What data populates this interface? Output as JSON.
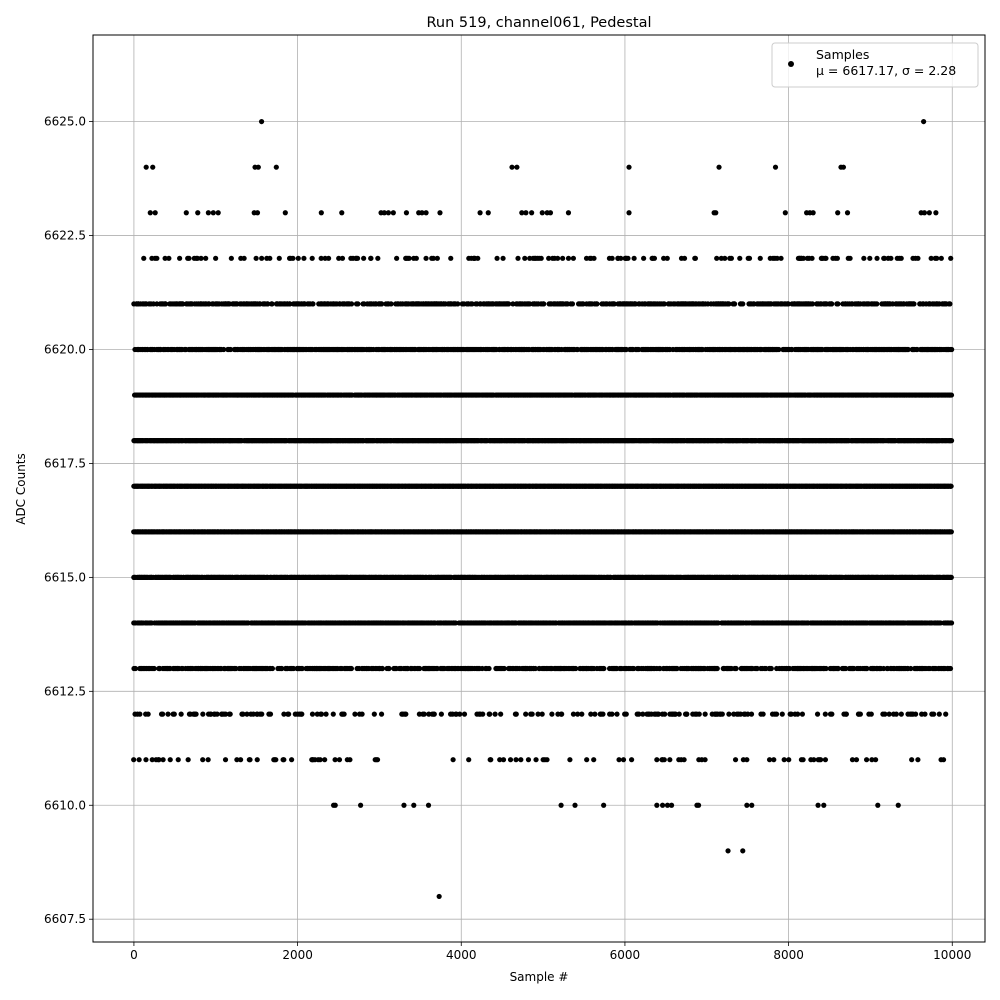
{
  "chart_data": {
    "type": "scatter",
    "title": "Run 519, channel061, Pedestal",
    "xlabel": "Sample #",
    "ylabel": "ADC Counts",
    "xlim": [
      -500,
      10400
    ],
    "ylim": [
      6607.0,
      6626.9
    ],
    "xticks": [
      0,
      2000,
      4000,
      6000,
      8000,
      10000
    ],
    "xtick_labels": [
      "0",
      "2000",
      "4000",
      "6000",
      "8000",
      "10000"
    ],
    "yticks": [
      6607.5,
      6610.0,
      6612.5,
      6615.0,
      6617.5,
      6620.0,
      6622.5,
      6625.0
    ],
    "ytick_labels": [
      "6607.5",
      "6610.0",
      "6612.5",
      "6615.0",
      "6617.5",
      "6620.0",
      "6622.5",
      "6625.0"
    ],
    "grid": true,
    "legend_position": "top-right",
    "legend": {
      "label": "Samples",
      "stats": "μ = 6617.17, σ = 2.28"
    },
    "marker_color": "#000000",
    "series": [
      {
        "name": "Samples",
        "n_samples": 10000,
        "mean": 6617.17,
        "sigma": 2.28,
        "levels": [
          {
            "y": 6625,
            "x": [
              1560,
              9650
            ]
          },
          {
            "y": 6624,
            "x": [
              150,
              230,
              1480,
              1520,
              1740,
              4620,
              4680,
              6050,
              7150,
              7840,
              8640,
              8670
            ]
          },
          {
            "y": 6623,
            "x": [
              200,
              260,
              640,
              780,
              910,
              970,
              1030,
              1470,
              1510,
              1850,
              2290,
              2540,
              3020,
              3060,
              3110,
              3170,
              3330,
              3480,
              3520,
              3570,
              3740,
              4230,
              4330,
              4740,
              4790,
              4860,
              4990,
              5050,
              5090,
              5310,
              6050,
              7090,
              7110,
              7960,
              8220,
              8260,
              8300,
              8600,
              8720,
              9620,
              9660,
              9720,
              9800
            ]
          },
          {
            "y": 6610,
            "x": [
              2440,
              2460,
              2770,
              3300,
              3420,
              3600,
              5220,
              5390,
              5740,
              6390,
              6460,
              6520,
              6570,
              6880,
              6900,
              7490,
              7550,
              8360,
              8430,
              9090,
              9340
            ]
          },
          {
            "y": 6609,
            "x": [
              7260,
              7440
            ]
          },
          {
            "y": 6608,
            "x": [
              3730
            ]
          }
        ],
        "dense_levels": [
          {
            "y": 6622,
            "density": 0.16
          },
          {
            "y": 6621,
            "density": 0.55
          },
          {
            "y": 6620,
            "density": 0.78
          },
          {
            "y": 6619,
            "density": 0.95
          },
          {
            "y": 6618,
            "density": 0.97
          },
          {
            "y": 6617,
            "density": 1.0
          },
          {
            "y": 6616,
            "density": 1.0
          },
          {
            "y": 6615,
            "density": 0.93
          },
          {
            "y": 6614,
            "density": 0.82
          },
          {
            "y": 6613,
            "density": 0.58
          },
          {
            "y": 6612,
            "density": 0.22
          },
          {
            "y": 6611,
            "density": 0.07
          }
        ]
      }
    ]
  }
}
